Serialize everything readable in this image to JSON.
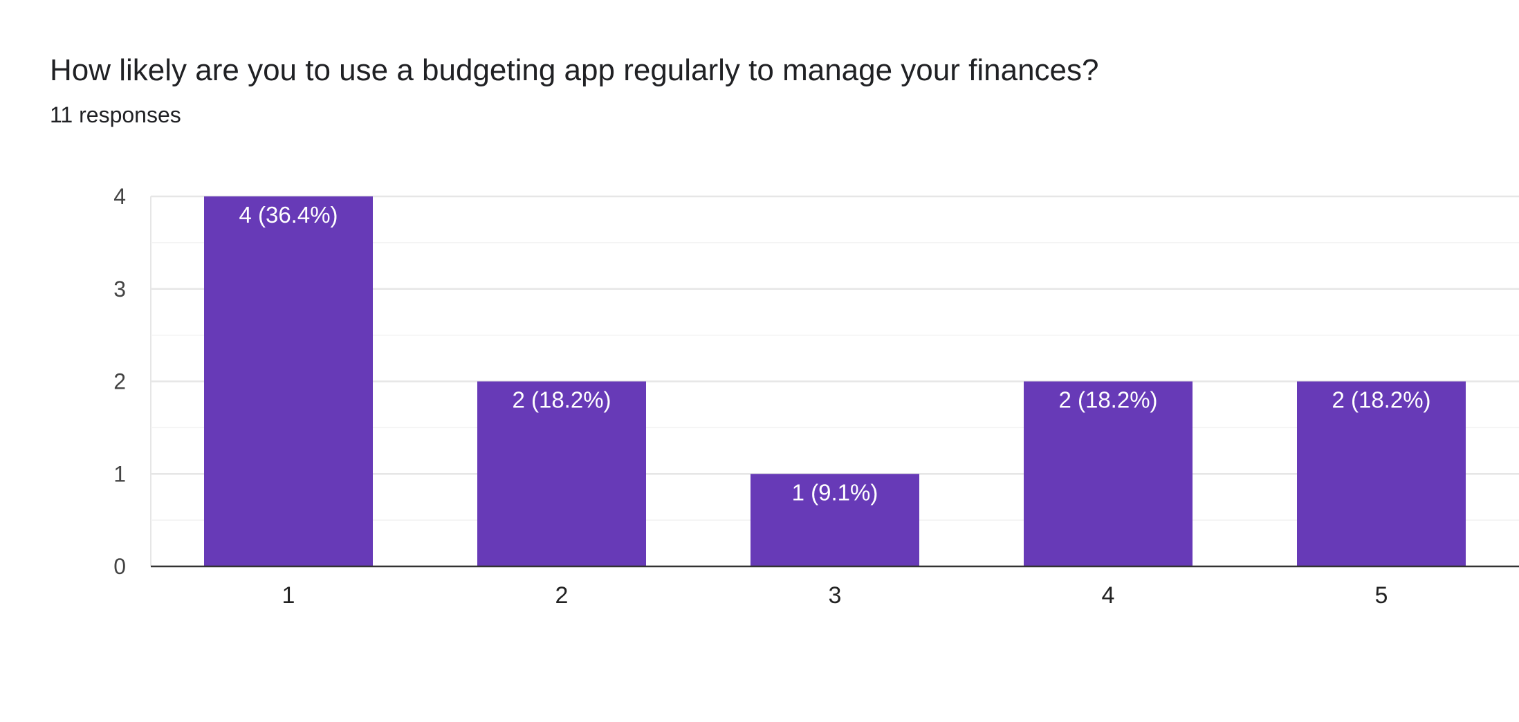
{
  "header": {
    "question": "How likely are you to use a budgeting app regularly to manage your finances?",
    "responses": "11 responses"
  },
  "colors": {
    "bar": "#673ab7",
    "grid_major": "#e6e6e6",
    "grid_minor": "#f2f2f2",
    "baseline": "#333333"
  },
  "chart_data": {
    "type": "bar",
    "title": "How likely are you to use a budgeting app regularly to manage your finances?",
    "subtitle": "11 responses",
    "xlabel": "",
    "ylabel": "",
    "categories": [
      "1",
      "2",
      "3",
      "4",
      "5"
    ],
    "values": [
      4,
      2,
      1,
      2,
      2
    ],
    "data_labels": [
      "4 (36.4%)",
      "2 (18.2%)",
      "1 (9.1%)",
      "2 (18.2%)",
      "2 (18.2%)"
    ],
    "y_ticks": [
      "0",
      "1",
      "2",
      "3",
      "4"
    ],
    "ylim": [
      0,
      4
    ],
    "grid": true,
    "legend": "none"
  }
}
